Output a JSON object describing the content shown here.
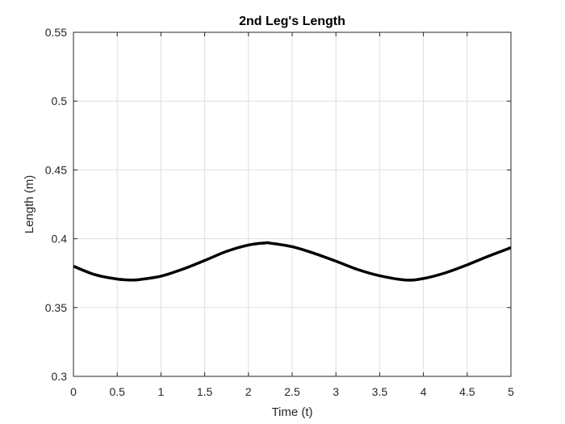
{
  "chart_data": {
    "type": "line",
    "title": "2nd Leg's Length",
    "xlabel": "Time (t)",
    "ylabel": "Length (m)",
    "xlim": [
      0,
      5
    ],
    "ylim": [
      0.3,
      0.55
    ],
    "grid": true,
    "x_ticks": [
      0,
      0.5,
      1,
      1.5,
      2,
      2.5,
      3,
      3.5,
      4,
      4.5,
      5
    ],
    "x_tick_labels": [
      "0",
      "0.5",
      "1",
      "1.5",
      "2",
      "2.5",
      "3",
      "3.5",
      "4",
      "4.5",
      "5"
    ],
    "y_ticks": [
      0.3,
      0.35,
      0.4,
      0.45,
      0.5,
      0.55
    ],
    "y_tick_labels": [
      "0.3",
      "0.35",
      "0.4",
      "0.45",
      "0.5",
      "0.55"
    ],
    "series": [
      {
        "color": "#000000",
        "x": [
          0,
          0.25,
          0.5,
          0.65,
          0.75,
          1.0,
          1.25,
          1.5,
          1.75,
          2.0,
          2.2,
          2.25,
          2.5,
          2.75,
          3.0,
          3.25,
          3.5,
          3.8,
          4.0,
          4.25,
          4.5,
          4.75,
          5.0
        ],
        "y": [
          0.38,
          0.3738,
          0.3707,
          0.37,
          0.3703,
          0.3728,
          0.3779,
          0.3842,
          0.3908,
          0.3954,
          0.397,
          0.3968,
          0.3942,
          0.3894,
          0.3837,
          0.3776,
          0.3731,
          0.37,
          0.3711,
          0.3752,
          0.381,
          0.3875,
          0.3935
        ]
      }
    ]
  }
}
